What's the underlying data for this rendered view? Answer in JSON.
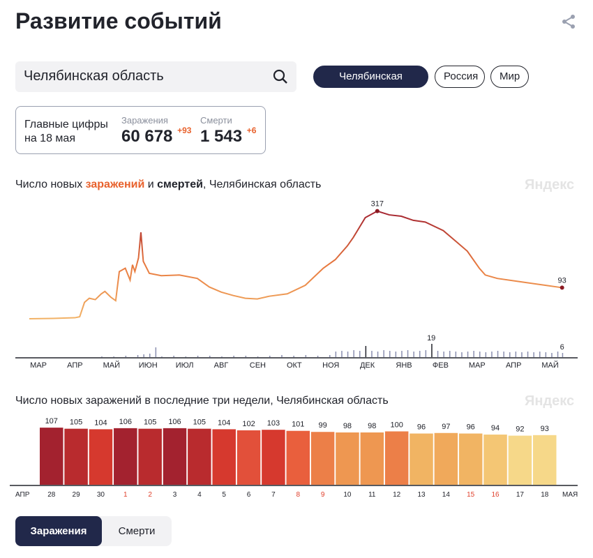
{
  "title": "Развитие событий",
  "search": {
    "value": "Челябинская область"
  },
  "regions": [
    "Челябинская область",
    "Россия",
    "Мир"
  ],
  "summary": {
    "label_line1": "Главные цифры",
    "label_line2": "на 18 мая",
    "cases_label": "Заражения",
    "cases": "60 678",
    "cases_delta": "+93",
    "deaths_label": "Смерти",
    "deaths": "1 543",
    "deaths_delta": "+6"
  },
  "chart1_title": {
    "p1": "Число новых ",
    "p2": "заражений",
    "p3": " и ",
    "p4": "смертей",
    "p5": ", Челябинская область"
  },
  "chart2_title": "Число новых заражений в последние три недели, Челябинская область",
  "watermark": "Яндекс",
  "tabs": [
    "Заражения",
    "Смерти"
  ],
  "chart_data": [
    {
      "type": "line",
      "title": "Число новых заражений и смертей, Челябинская область",
      "x_ticks": [
        "МАР",
        "АПР",
        "МАЙ",
        "ИЮН",
        "ИЮЛ",
        "АВГ",
        "СЕН",
        "ОКТ",
        "НОЯ",
        "ДЕК",
        "ЯНВ",
        "ФЕВ",
        "МАР",
        "АПР",
        "МАЙ"
      ],
      "cases_series": {
        "day": [
          0,
          20,
          38,
          42,
          46,
          50,
          55,
          60,
          63,
          68,
          72,
          75,
          80,
          84,
          86,
          88,
          91,
          93,
          95,
          100,
          110,
          125,
          140,
          150,
          160,
          170,
          180,
          190,
          200,
          215,
          230,
          245,
          255,
          265,
          270,
          280,
          290,
          300,
          310,
          320,
          330,
          345,
          355,
          365,
          375,
          380,
          390,
          410,
          430,
          444
        ],
        "value": [
          2,
          3,
          5,
          8,
          50,
          62,
          58,
          75,
          82,
          65,
          55,
          140,
          150,
          115,
          160,
          140,
          180,
          255,
          170,
          135,
          128,
          130,
          120,
          95,
          80,
          70,
          62,
          60,
          68,
          75,
          100,
          150,
          175,
          215,
          240,
          298,
          317,
          306,
          302,
          290,
          285,
          260,
          230,
          200,
          150,
          130,
          120,
          110,
          100,
          93
        ]
      },
      "cases_annotations": [
        {
          "day": 290,
          "value": 317,
          "label": "317"
        },
        {
          "day": 444,
          "value": 93,
          "label": "93"
        }
      ],
      "deaths_series": {
        "day": [
          60,
          70,
          80,
          90,
          95,
          100,
          105,
          110,
          120,
          130,
          140,
          150,
          160,
          170,
          180,
          190,
          200,
          210,
          220,
          230,
          240,
          250,
          255,
          260,
          265,
          270,
          275,
          280,
          285,
          290,
          295,
          300,
          305,
          310,
          315,
          320,
          325,
          330,
          335,
          340,
          345,
          350,
          355,
          360,
          365,
          370,
          375,
          380,
          385,
          390,
          395,
          400,
          405,
          410,
          415,
          420,
          425,
          430,
          435,
          440,
          444
        ],
        "value": [
          1,
          1,
          2,
          3,
          4,
          5,
          14,
          1,
          2,
          1,
          2,
          2,
          1,
          2,
          2,
          1,
          2,
          3,
          2,
          3,
          2,
          3,
          8,
          9,
          8,
          10,
          9,
          16,
          9,
          8,
          10,
          9,
          8,
          9,
          10,
          8,
          9,
          10,
          19,
          9,
          8,
          9,
          8,
          7,
          8,
          9,
          8,
          7,
          8,
          9,
          8,
          7,
          8,
          7,
          8,
          7,
          8,
          7,
          6,
          8,
          6
        ]
      },
      "deaths_annotations": [
        {
          "day": 335,
          "value": 19,
          "label": "19"
        },
        {
          "day": 444,
          "value": 6,
          "label": "6"
        }
      ]
    },
    {
      "type": "bar",
      "title": "Число новых заражений в последние три недели, Челябинская область",
      "categories": [
        "28",
        "29",
        "30",
        "1",
        "2",
        "3",
        "4",
        "5",
        "6",
        "7",
        "8",
        "9",
        "10",
        "11",
        "12",
        "13",
        "14",
        "15",
        "16",
        "17",
        "18"
      ],
      "values": [
        107,
        105,
        104,
        106,
        105,
        106,
        105,
        104,
        102,
        103,
        101,
        99,
        98,
        98,
        100,
        96,
        97,
        96,
        94,
        92,
        93
      ],
      "holiday": [
        false,
        false,
        false,
        true,
        true,
        false,
        false,
        false,
        false,
        false,
        true,
        true,
        false,
        false,
        false,
        false,
        false,
        true,
        true,
        false,
        false
      ],
      "colors": [
        "#a3222f",
        "#b92b2e",
        "#d6392e",
        "#a3222f",
        "#b92b2e",
        "#a3222f",
        "#b92b2e",
        "#d6392e",
        "#e2503a",
        "#d6392e",
        "#e95f3d",
        "#ec7f48",
        "#ee9751",
        "#ee9751",
        "#ec7f48",
        "#f1b463",
        "#f0a95b",
        "#f1b463",
        "#f4c674",
        "#f6d889",
        "#f6d889"
      ],
      "left_label": "АПР",
      "right_label": "МАЯ"
    }
  ]
}
